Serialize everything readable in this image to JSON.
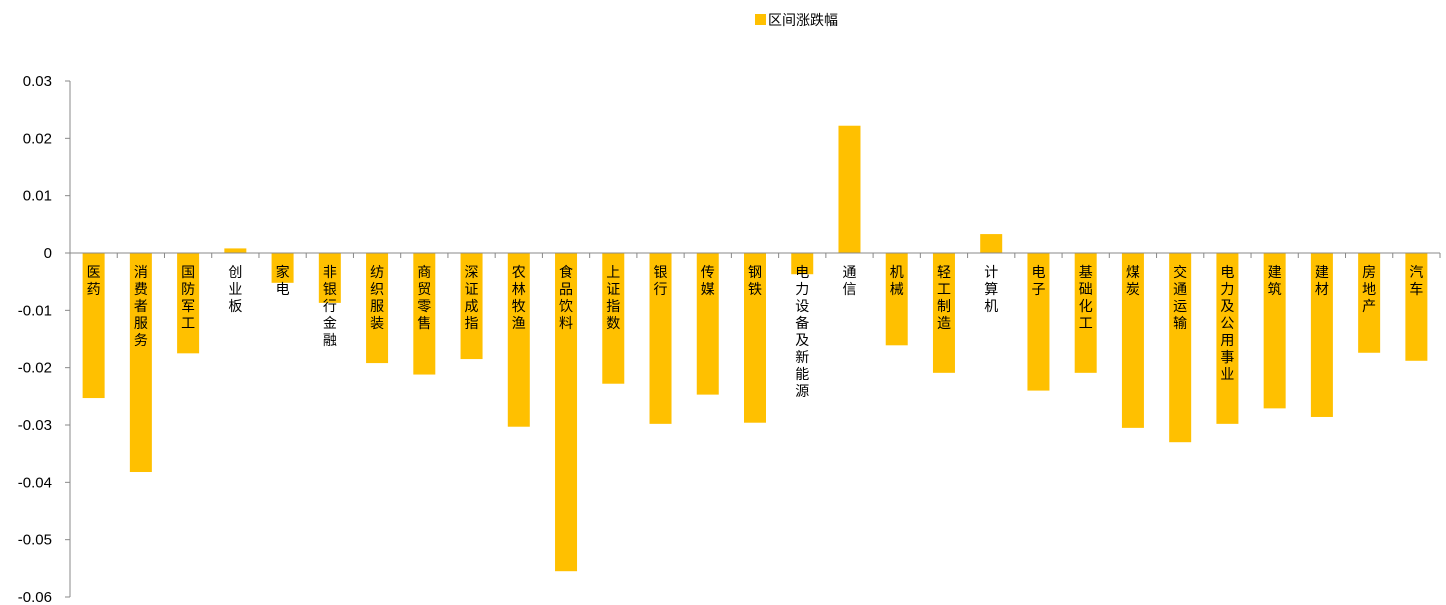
{
  "chart_data": {
    "type": "bar",
    "legend": {
      "label": "区间涨跌幅",
      "position": "top"
    },
    "color": "#FFC000",
    "ylim": [
      -0.06,
      0.03
    ],
    "yticks": [
      "0.03",
      "0.02",
      "0.01",
      "0",
      "-0.01",
      "-0.02",
      "-0.03",
      "-0.04",
      "-0.05",
      "-0.06"
    ],
    "grid": false,
    "categories": [
      "医药",
      "消费者服务",
      "国防军工",
      "创业板",
      "家电",
      "非银行金融",
      "纺织服装",
      "商贸零售",
      "深证成指",
      "农林牧渔",
      "食品饮料",
      "上证指数",
      "银行",
      "传媒",
      "钢铁",
      "电力设备及新能源",
      "通信",
      "机械",
      "轻工制造",
      "计算机",
      "电子",
      "基础化工",
      "煤炭",
      "交通运输",
      "电力及公用事业",
      "建筑",
      "建材",
      "房地产",
      "汽车"
    ],
    "values": [
      -0.0253,
      -0.0382,
      -0.0175,
      0.0008,
      -0.0052,
      -0.0087,
      -0.0192,
      -0.0212,
      -0.0185,
      -0.0303,
      -0.0555,
      -0.0228,
      -0.0298,
      -0.0247,
      -0.0296,
      -0.0037,
      0.0222,
      -0.0161,
      -0.0209,
      0.0033,
      -0.024,
      -0.0209,
      -0.0305,
      -0.033,
      -0.0298,
      -0.0271,
      -0.0286,
      -0.0174,
      -0.0188
    ]
  }
}
